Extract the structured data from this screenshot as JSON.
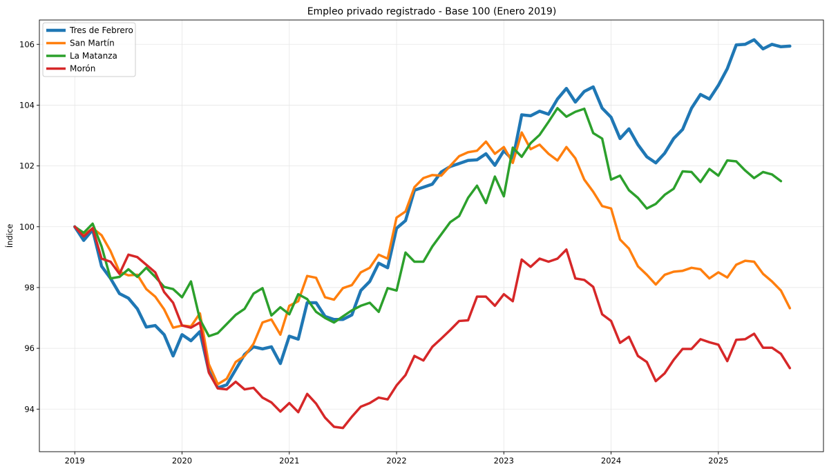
{
  "chart_data": {
    "type": "line",
    "title": "Empleo privado registrado - Base 100 (Enero 2019)",
    "xlabel": "",
    "ylabel": "Índice",
    "xlim": [
      2018.67,
      2025.98
    ],
    "ylim": [
      92.6,
      106.8
    ],
    "x_ticks": [
      2019,
      2020,
      2021,
      2022,
      2023,
      2024,
      2025
    ],
    "x_tick_labels": [
      "2019",
      "2020",
      "2021",
      "2022",
      "2023",
      "2024",
      "2025"
    ],
    "y_ticks": [
      94,
      96,
      98,
      100,
      102,
      104,
      106
    ],
    "y_tick_labels": [
      "94",
      "96",
      "98",
      "100",
      "102",
      "104",
      "106"
    ],
    "grid": true,
    "legend_position": "upper left",
    "x_start": "2019-01",
    "x_step": "month",
    "series": [
      {
        "name": "Tres de Febrero",
        "color": "#1f77b4",
        "width": 4.5,
        "values": [
          100.0,
          99.55,
          99.9,
          98.7,
          98.3,
          97.8,
          97.65,
          97.3,
          96.7,
          96.75,
          96.45,
          95.75,
          96.45,
          96.25,
          96.55,
          95.25,
          94.7,
          94.8,
          95.3,
          95.8,
          96.05,
          95.98,
          96.05,
          95.5,
          96.4,
          96.3,
          97.5,
          97.5,
          97.05,
          96.95,
          96.95,
          97.1,
          97.9,
          98.2,
          98.8,
          98.65,
          99.95,
          100.2,
          101.2,
          101.3,
          101.4,
          101.8,
          101.98,
          102.08,
          102.18,
          102.2,
          102.4,
          102.02,
          102.5,
          102.2,
          103.68,
          103.65,
          103.8,
          103.7,
          104.2,
          104.55,
          104.1,
          104.45,
          104.6,
          103.9,
          103.6,
          102.9,
          103.22,
          102.7,
          102.3,
          102.1,
          102.42,
          102.9,
          103.2,
          103.9,
          104.35,
          104.2,
          104.65,
          105.2,
          105.98,
          106.0,
          106.15,
          105.85,
          106.0,
          105.92,
          105.94
        ]
      },
      {
        "name": "San Martín",
        "color": "#ff7f0e",
        "width": 3.5,
        "values": [
          100.0,
          99.72,
          99.95,
          99.72,
          99.2,
          98.52,
          98.4,
          98.42,
          97.95,
          97.7,
          97.28,
          96.68,
          96.75,
          96.72,
          97.15,
          95.48,
          94.82,
          95.0,
          95.55,
          95.75,
          96.15,
          96.85,
          96.95,
          96.45,
          97.4,
          97.55,
          98.38,
          98.32,
          97.68,
          97.6,
          97.98,
          98.08,
          98.5,
          98.65,
          99.08,
          98.95,
          100.3,
          100.5,
          101.3,
          101.6,
          101.7,
          101.68,
          102.0,
          102.32,
          102.45,
          102.5,
          102.8,
          102.4,
          102.62,
          102.1,
          103.1,
          102.55,
          102.7,
          102.4,
          102.18,
          102.62,
          102.25,
          101.55,
          101.15,
          100.68,
          100.6,
          99.58,
          99.28,
          98.7,
          98.42,
          98.1,
          98.42,
          98.52,
          98.55,
          98.65,
          98.6,
          98.3,
          98.5,
          98.33,
          98.75,
          98.88,
          98.85,
          98.45,
          98.2,
          97.9,
          97.32
        ]
      },
      {
        "name": "La Matanza",
        "color": "#2ca02c",
        "width": 3.5,
        "values": [
          100.0,
          99.8,
          100.1,
          99.35,
          98.3,
          98.35,
          98.6,
          98.35,
          98.65,
          98.35,
          98.02,
          97.95,
          97.68,
          98.2,
          96.95,
          96.4,
          96.5,
          96.8,
          97.1,
          97.3,
          97.8,
          97.98,
          97.08,
          97.35,
          97.12,
          97.78,
          97.62,
          97.2,
          97.0,
          96.85,
          97.05,
          97.25,
          97.4,
          97.5,
          97.2,
          97.98,
          97.9,
          99.15,
          98.85,
          98.85,
          99.35,
          99.75,
          100.15,
          100.35,
          100.95,
          101.35,
          100.78,
          101.65,
          101.0,
          102.6,
          102.3,
          102.75,
          103.02,
          103.45,
          103.9,
          103.62,
          103.78,
          103.88,
          103.08,
          102.9,
          101.55,
          101.68,
          101.2,
          100.95,
          100.6,
          100.75,
          101.05,
          101.25,
          101.82,
          101.8,
          101.47,
          101.9,
          101.68,
          102.18,
          102.15,
          101.85,
          101.6,
          101.8,
          101.72,
          101.5
        ]
      },
      {
        "name": "Morón",
        "color": "#d62728",
        "width": 3.5,
        "values": [
          100.0,
          99.68,
          99.95,
          98.95,
          98.85,
          98.45,
          99.08,
          99.0,
          98.75,
          98.5,
          97.85,
          97.5,
          96.75,
          96.68,
          96.85,
          95.2,
          94.68,
          94.65,
          94.9,
          94.65,
          94.7,
          94.38,
          94.22,
          93.92,
          94.2,
          93.9,
          94.5,
          94.18,
          93.72,
          93.42,
          93.38,
          93.75,
          94.08,
          94.2,
          94.38,
          94.32,
          94.78,
          95.12,
          95.75,
          95.6,
          96.05,
          96.32,
          96.6,
          96.9,
          96.92,
          97.7,
          97.7,
          97.4,
          97.78,
          97.55,
          98.92,
          98.68,
          98.95,
          98.85,
          98.95,
          99.25,
          98.3,
          98.25,
          98.02,
          97.12,
          96.9,
          96.18,
          96.38,
          95.75,
          95.55,
          94.92,
          95.18,
          95.62,
          95.98,
          95.98,
          96.3,
          96.2,
          96.12,
          95.58,
          96.28,
          96.3,
          96.48,
          96.02,
          96.02,
          95.82,
          95.35
        ]
      }
    ]
  }
}
